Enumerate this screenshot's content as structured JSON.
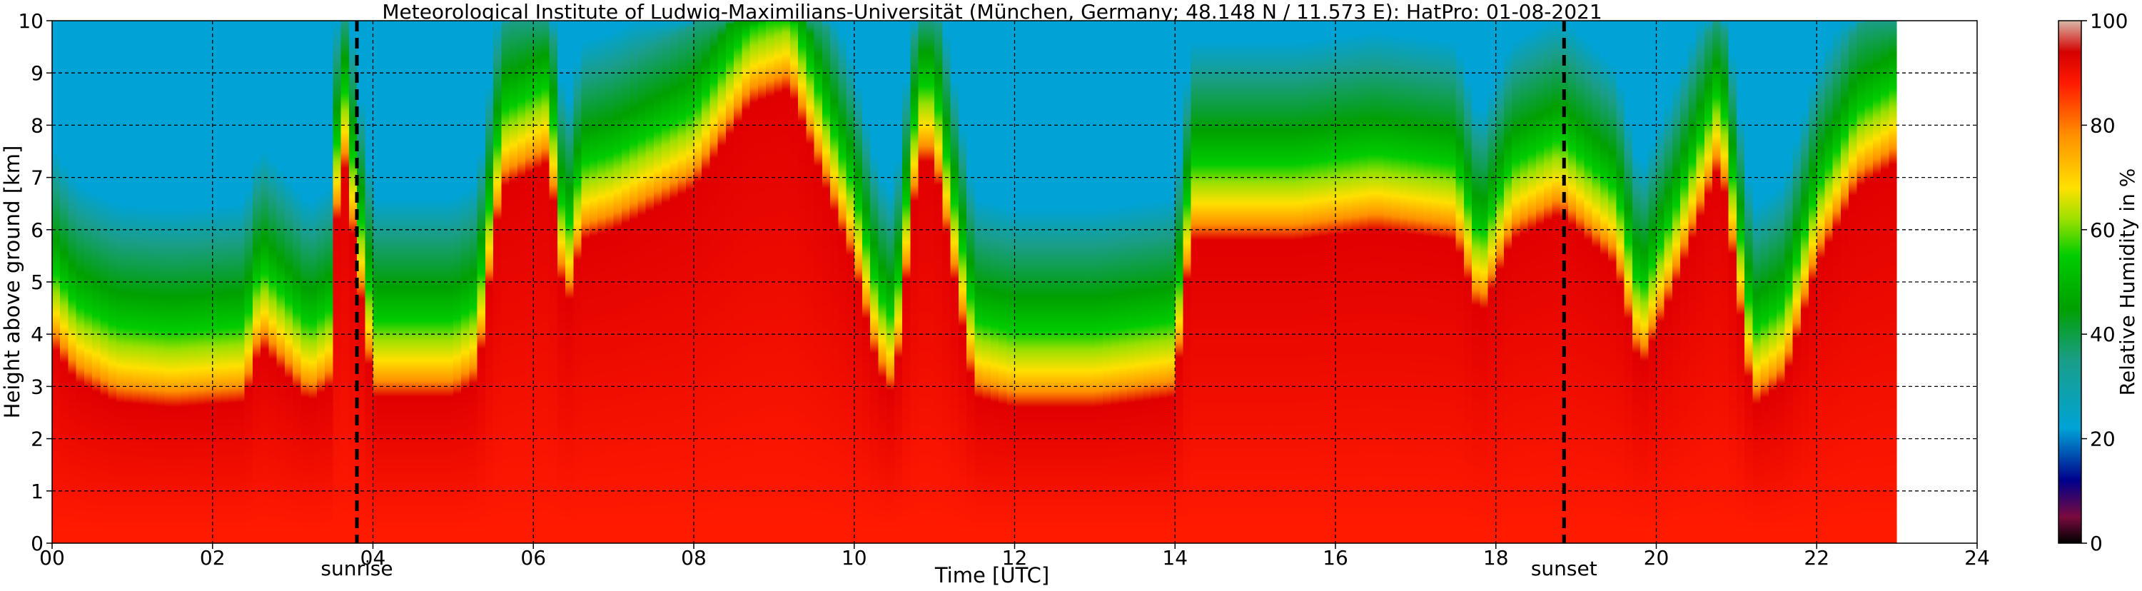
{
  "chart_data": {
    "type": "heatmap",
    "title": "Meteorological Institute of Ludwig-Maximilians-Universität (München, Germany; 48.148 N / 11.573 E):    HatPro: 01-08-2021",
    "xlabel": "Time [UTC]",
    "ylabel": "Height above ground [km]",
    "xlim": [
      0,
      24
    ],
    "ylim": [
      0,
      10
    ],
    "x_ticks": [
      "00",
      "02",
      "04",
      "06",
      "08",
      "10",
      "12",
      "14",
      "16",
      "18",
      "20",
      "22",
      "24"
    ],
    "y_ticks": [
      "0",
      "1",
      "2",
      "3",
      "4",
      "5",
      "6",
      "7",
      "8",
      "9",
      "10"
    ],
    "grid": true,
    "data_end_hour": 23.0,
    "markers": [
      {
        "label": "sunrise",
        "x": 3.8
      },
      {
        "label": "sunset",
        "x": 18.85
      }
    ],
    "colorbar": {
      "label": "Relative Humidity in %",
      "range": [
        0,
        100
      ],
      "ticks": [
        "0",
        "20",
        "40",
        "60",
        "80",
        "100"
      ],
      "stops": [
        {
          "value": 0,
          "color": "#000000"
        },
        {
          "value": 5,
          "color": "#7a0a3e"
        },
        {
          "value": 12,
          "color": "#00008b"
        },
        {
          "value": 22,
          "color": "#00a3d6"
        },
        {
          "value": 35,
          "color": "#1a9e88"
        },
        {
          "value": 45,
          "color": "#00a000"
        },
        {
          "value": 55,
          "color": "#00cc00"
        },
        {
          "value": 62,
          "color": "#9be000"
        },
        {
          "value": 68,
          "color": "#ffe000"
        },
        {
          "value": 78,
          "color": "#ff9000"
        },
        {
          "value": 88,
          "color": "#ff1a00"
        },
        {
          "value": 94,
          "color": "#d40000"
        },
        {
          "value": 100,
          "color": "#d8b8a8"
        }
      ]
    },
    "humid_layer_top_km": {
      "hours": [
        0,
        0.3,
        0.8,
        1.5,
        2.4,
        2.6,
        3.2,
        3.45,
        3.6,
        4.0,
        5.0,
        5.3,
        5.6,
        6.2,
        6.4,
        6.6,
        7.0,
        8.0,
        8.7,
        9.2,
        10.0,
        10.3,
        10.5,
        10.8,
        11.0,
        11.5,
        12.0,
        13.0,
        14.0,
        14.2,
        15.5,
        16.5,
        17.5,
        17.8,
        18.2,
        18.8,
        19.5,
        19.8,
        20.2,
        20.8,
        21.2,
        21.6,
        22.0,
        22.5,
        23.0
      ],
      "km": [
        5.0,
        4.3,
        3.9,
        3.8,
        3.9,
        5.0,
        3.9,
        4.2,
        9.0,
        4.0,
        4.0,
        4.3,
        8.0,
        8.5,
        5.5,
        7.0,
        7.2,
        8.0,
        9.6,
        9.9,
        6.5,
        4.5,
        4.0,
        8.5,
        8.5,
        4.0,
        3.8,
        3.8,
        4.0,
        7.0,
        7.0,
        7.2,
        7.0,
        5.5,
        7.0,
        7.5,
        6.5,
        4.5,
        6.0,
        8.5,
        3.8,
        4.3,
        6.5,
        8.0,
        8.5
      ]
    }
  }
}
